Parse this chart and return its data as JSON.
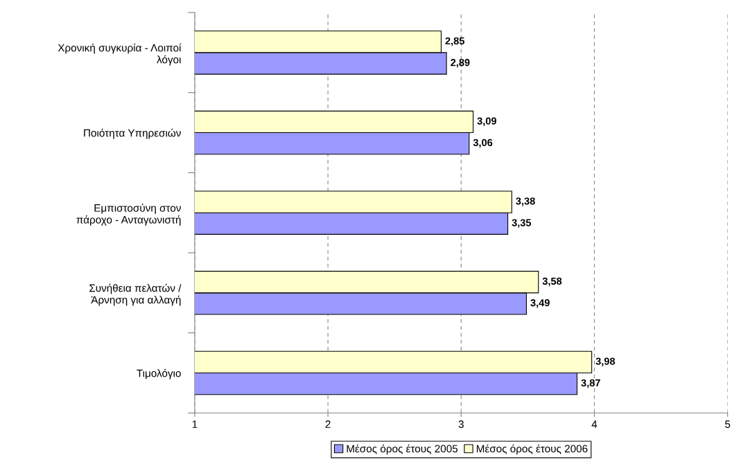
{
  "chart_data": {
    "type": "bar",
    "orientation": "horizontal",
    "categories": [
      "Χρονική συγκυρία - Λοιποί\nλόγοι",
      "Ποιότητα Υπηρεσιών",
      "Εμπιστοσύνη στον\nπάροχο - Ανταγωνιστή",
      "Συνήθεια πελατών /\nΆρνηση για αλλαγή",
      "Τιμολόγιο"
    ],
    "series": [
      {
        "name": "Μέσος όρος έτους 2005",
        "color": "#9999ff",
        "values": [
          2.89,
          3.06,
          3.35,
          3.49,
          3.87
        ],
        "value_labels": [
          "2,89",
          "3,06",
          "3,35",
          "3,49",
          "3,87"
        ]
      },
      {
        "name": "Μέσος όρος έτους 2006",
        "color": "#ffffcc",
        "values": [
          2.85,
          3.09,
          3.38,
          3.58,
          3.98
        ],
        "value_labels": [
          "2,85",
          "3,09",
          "3,38",
          "3,58",
          "3,98"
        ]
      }
    ],
    "xlim": [
      1,
      5
    ],
    "xticks": [
      1,
      2,
      3,
      4,
      5
    ],
    "grid": "x",
    "legend": "bottom"
  }
}
